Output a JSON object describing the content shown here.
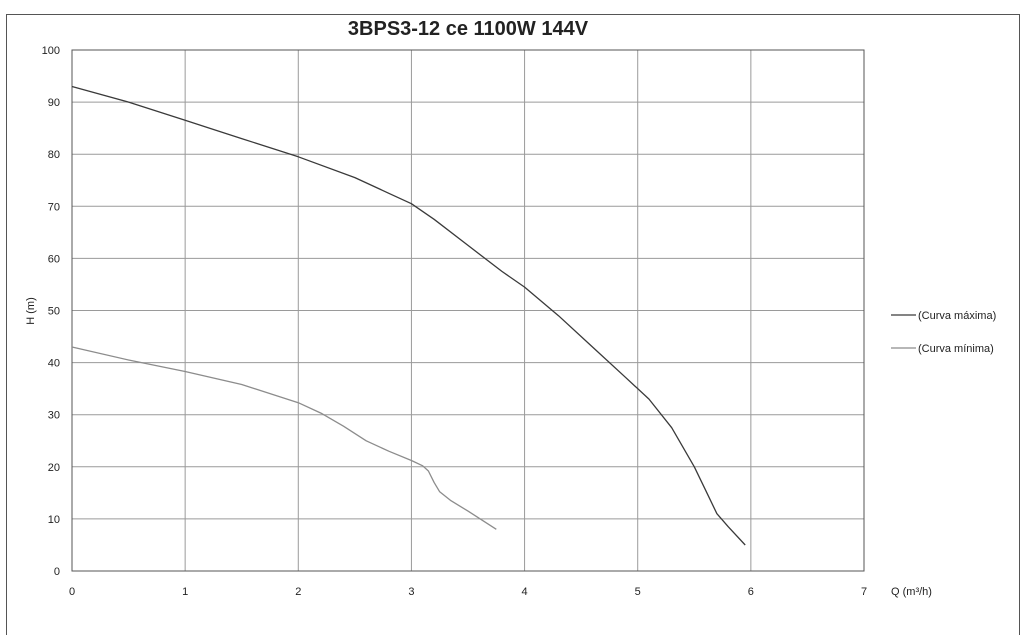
{
  "chart_data": {
    "type": "line",
    "title": "3BPS3-12 ce 1100W 144V",
    "xlabel": "Q (m³/h)",
    "ylabel": "H (m)",
    "xlim": [
      0,
      7
    ],
    "ylim": [
      0,
      100
    ],
    "xticks": [
      "0",
      "1",
      "2",
      "3",
      "4",
      "5",
      "6",
      "7"
    ],
    "yticks": [
      "0",
      "10",
      "20",
      "30",
      "40",
      "50",
      "60",
      "70",
      "80",
      "90",
      "100"
    ],
    "grid": true,
    "legend_position": "right",
    "series": [
      {
        "name": "(Curva máxima)",
        "color": "#3a3a3a",
        "x": [
          0,
          0.5,
          1.0,
          1.5,
          2.0,
          2.5,
          2.8,
          3.0,
          3.2,
          3.5,
          3.8,
          4.0,
          4.3,
          4.6,
          4.9,
          5.1,
          5.3,
          5.5,
          5.6,
          5.7,
          5.8,
          5.95
        ],
        "y": [
          93,
          90,
          86.5,
          83,
          79.5,
          75.5,
          72.5,
          70.5,
          67.5,
          62.5,
          57.5,
          54.5,
          49,
          43,
          37,
          33,
          27.5,
          20,
          15.5,
          11,
          8.5,
          5
        ]
      },
      {
        "name": "(Curva mínima)",
        "color": "#8c8c8c",
        "x": [
          0,
          0.5,
          1.0,
          1.5,
          2.0,
          2.2,
          2.4,
          2.6,
          2.8,
          3.0,
          3.1,
          3.15,
          3.2,
          3.25,
          3.35,
          3.5,
          3.75
        ],
        "y": [
          43,
          40.5,
          38.3,
          35.8,
          32.3,
          30.3,
          27.8,
          25.0,
          23.0,
          21.2,
          20.2,
          19.2,
          17.0,
          15.2,
          13.5,
          11.5,
          8
        ]
      }
    ]
  }
}
